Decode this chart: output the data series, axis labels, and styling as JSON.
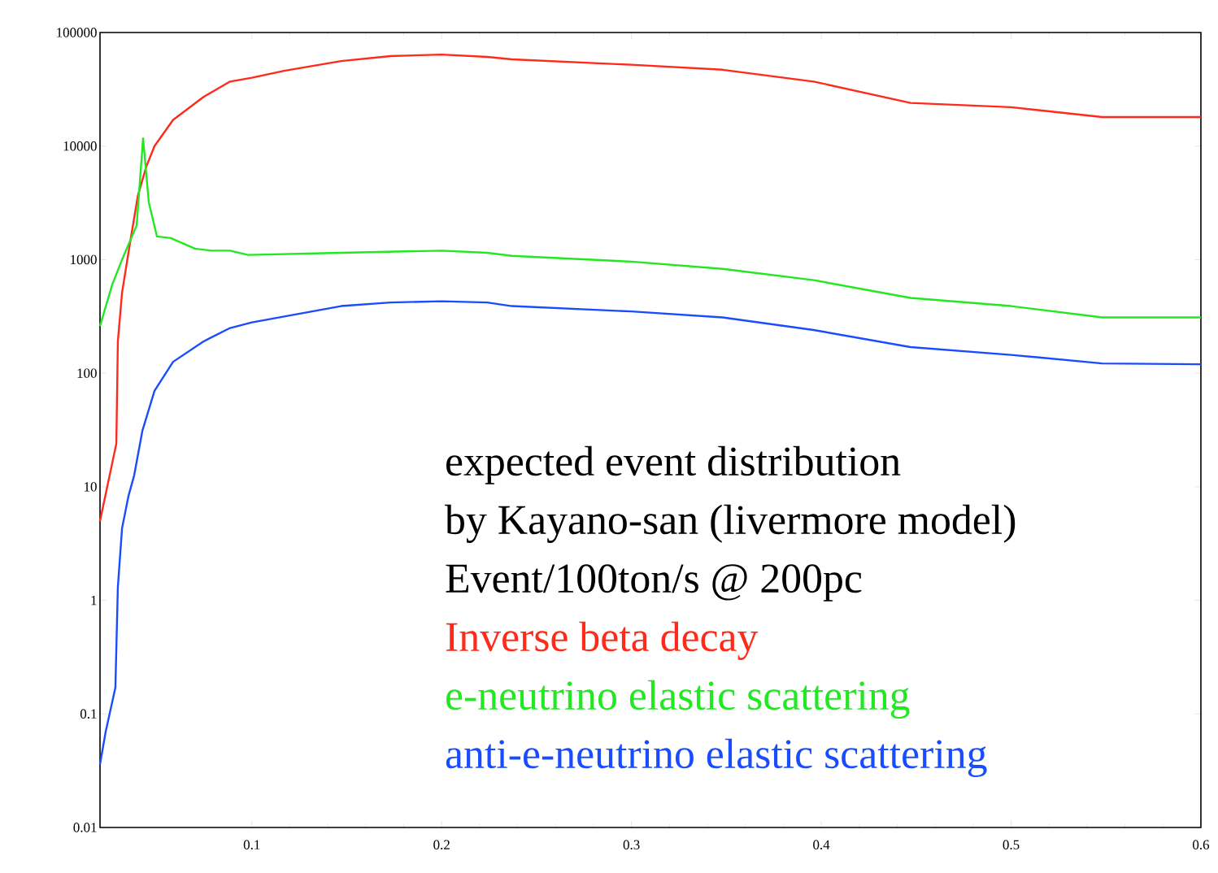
{
  "chart_data": {
    "type": "line",
    "log": "y",
    "legend": "bottom right",
    "line_style": "solid",
    "marker": "none",
    "xlim": [
      0.02,
      0.6
    ],
    "ylim": [
      0.01,
      100000
    ],
    "xticks": [
      0.1,
      0.2,
      0.3,
      0.4,
      0.5,
      0.6
    ],
    "yticks": [
      0.01,
      0.1,
      1,
      10,
      100,
      1000,
      10000,
      100000
    ],
    "annotations": [
      "expected event distribution",
      "by Kayano-san (livermore model)",
      "Event/100ton/s @ 200pc"
    ],
    "series": [
      {
        "name": "Inverse beta decay",
        "color": "#ff2a1a",
        "x": [
          0.02,
          0.0286,
          0.0294,
          0.0316,
          0.0358,
          0.04,
          0.0444,
          0.0487,
          0.0585,
          0.0744,
          0.0885,
          0.1,
          0.117,
          0.147,
          0.173,
          0.2,
          0.224,
          0.237,
          0.3,
          0.348,
          0.396,
          0.447,
          0.5,
          0.548,
          0.6
        ],
        "values": [
          5,
          24,
          190,
          510,
          1400,
          3700,
          6600,
          10000,
          17000,
          27000,
          37000,
          40000,
          46000,
          56000,
          62000,
          64000,
          61000,
          58000,
          52000,
          47000,
          37000,
          24000,
          22000,
          18000,
          18000
        ]
      },
      {
        "name": "e-neutrino elastic scattering",
        "color": "#22e822",
        "x": [
          0.02,
          0.0264,
          0.0316,
          0.0393,
          0.0427,
          0.0457,
          0.05,
          0.0573,
          0.07,
          0.0787,
          0.0885,
          0.098,
          0.147,
          0.2,
          0.224,
          0.237,
          0.3,
          0.348,
          0.396,
          0.447,
          0.5,
          0.548,
          0.6
        ],
        "values": [
          260,
          600,
          1000,
          2000,
          11700,
          3200,
          1600,
          1550,
          1250,
          1200,
          1200,
          1100,
          1150,
          1200,
          1150,
          1080,
          960,
          830,
          660,
          460,
          390,
          310,
          310
        ]
      },
      {
        "name": "anti-e-neutrino elastic scattering",
        "color": "#1a4cff",
        "x": [
          0.02,
          0.023,
          0.0281,
          0.0294,
          0.0316,
          0.035,
          0.038,
          0.0423,
          0.0487,
          0.0585,
          0.0744,
          0.0885,
          0.1,
          0.147,
          0.173,
          0.2,
          0.224,
          0.237,
          0.3,
          0.348,
          0.396,
          0.447,
          0.5,
          0.548,
          0.6
        ],
        "values": [
          0.036,
          0.07,
          0.17,
          1.3,
          4.3,
          8.3,
          12.6,
          31,
          70,
          126,
          190,
          250,
          280,
          390,
          420,
          430,
          420,
          390,
          350,
          310,
          240,
          170,
          145,
          122,
          120
        ]
      }
    ]
  }
}
